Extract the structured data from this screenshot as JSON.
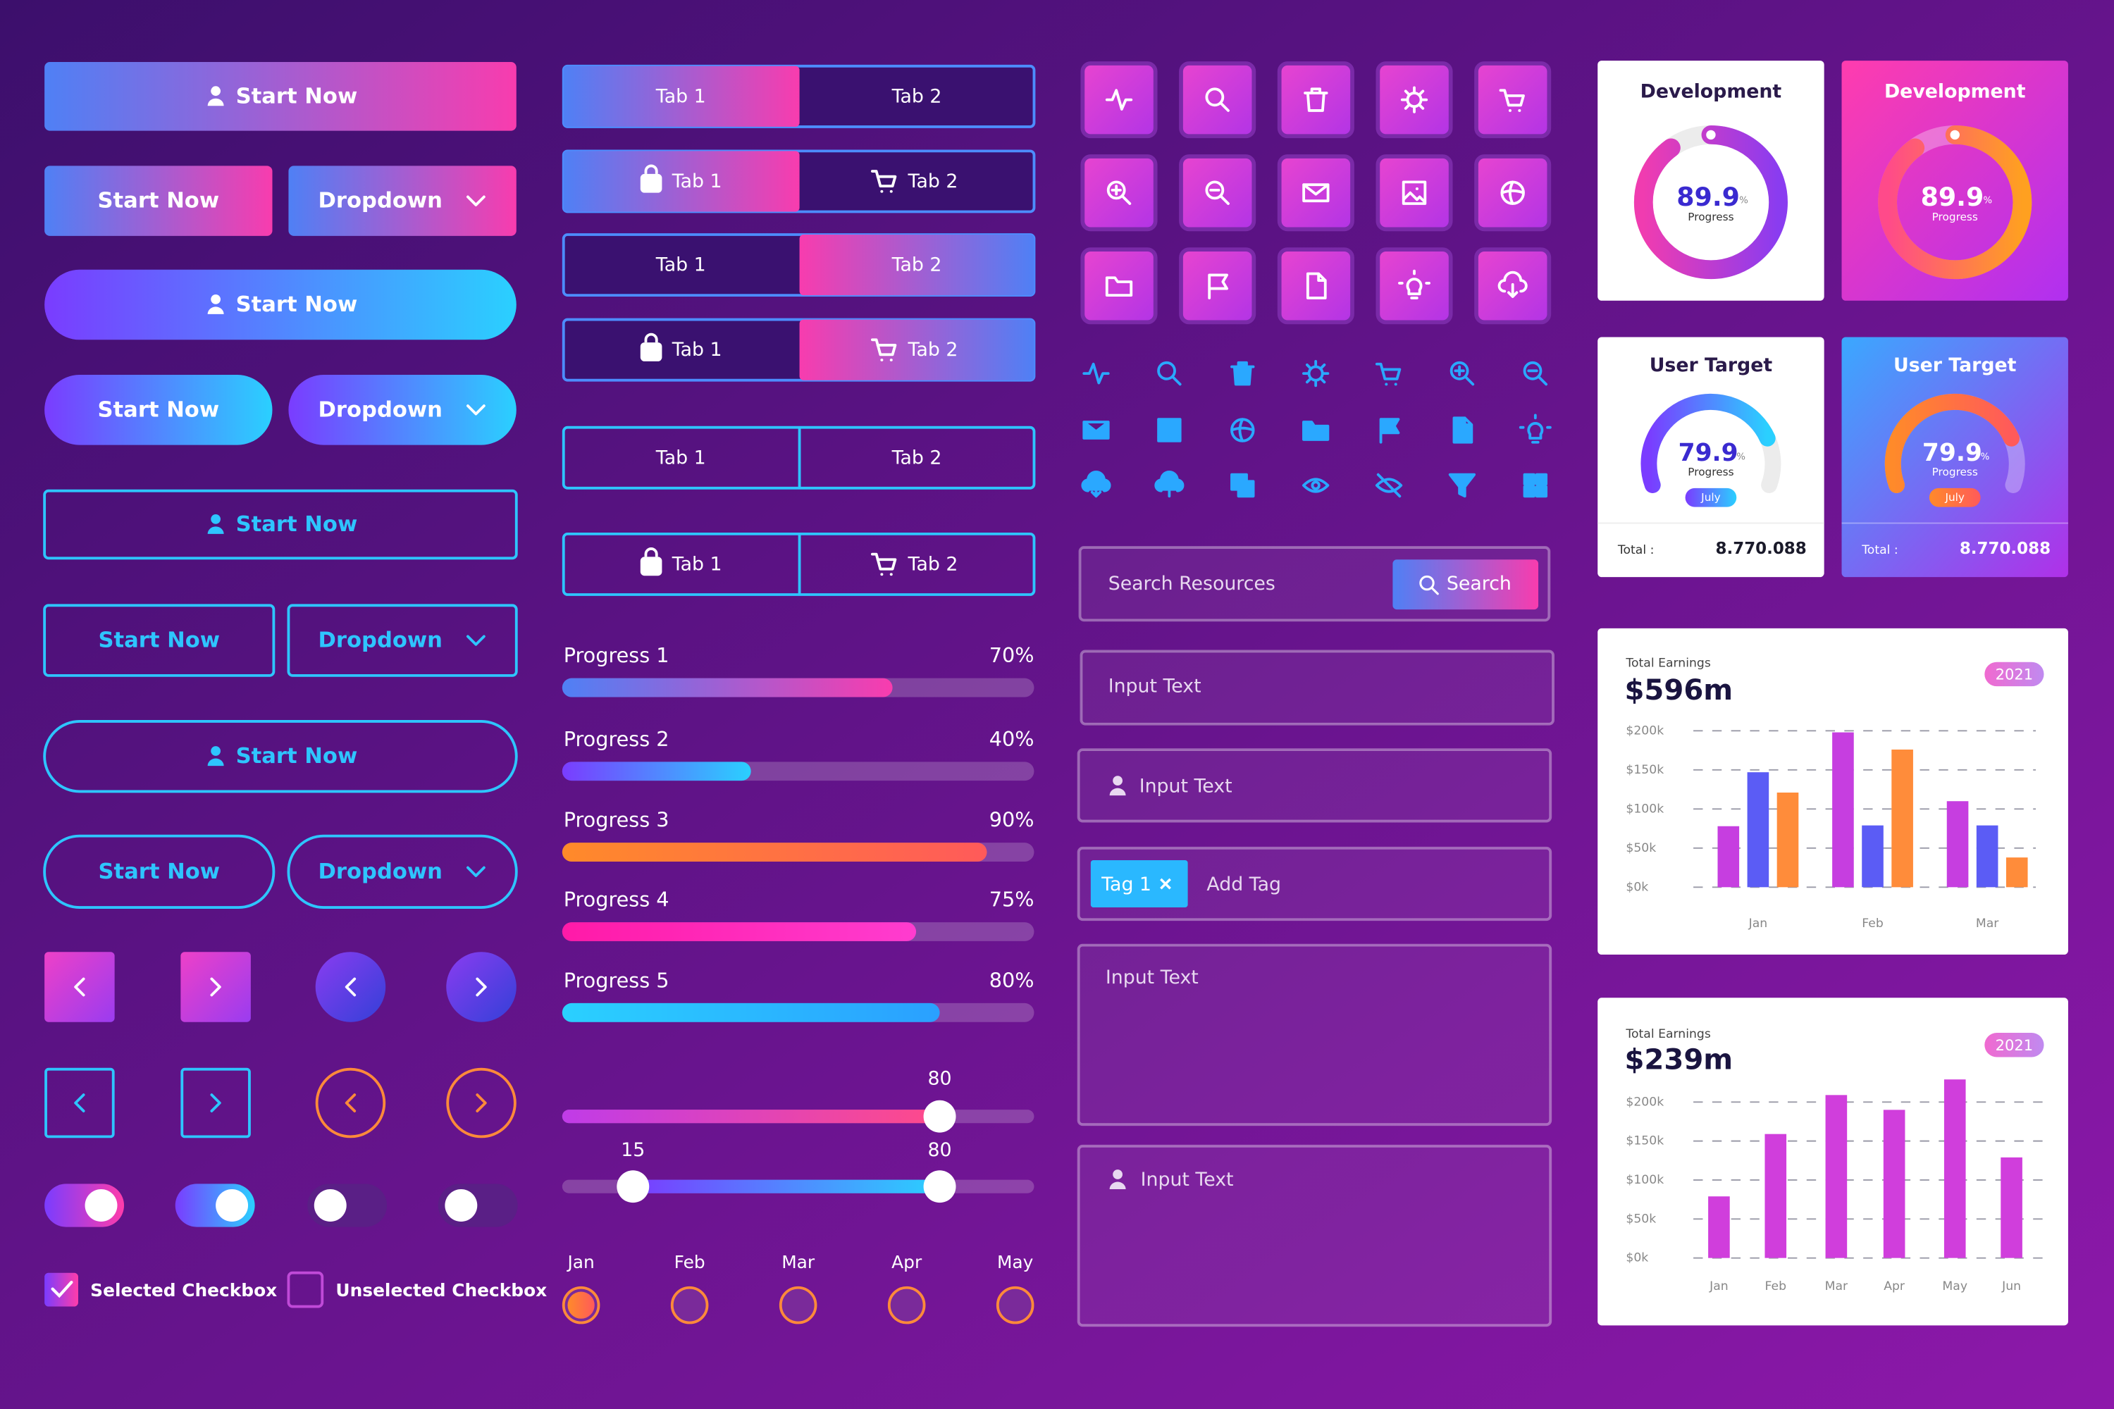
{
  "buttons": [
    "Start Now",
    "Start Now",
    "Dropdown",
    "Start Now",
    "Start Now",
    "Dropdown",
    "Start Now",
    "Start Now",
    "Dropdown",
    "Start Now",
    "Start Now",
    "Dropdown"
  ],
  "tabs": [
    [
      "Tab 1",
      "Tab 2"
    ],
    [
      "Tab 1",
      "Tab 2"
    ],
    [
      "Tab 1",
      "Tab 2"
    ],
    [
      "Tab 1",
      "Tab 2"
    ],
    [
      "Tab 1",
      "Tab 2"
    ],
    [
      "Tab 1",
      "Tab 2"
    ]
  ],
  "progress": [
    {
      "label": "Progress 1",
      "value": 70,
      "value_label": "70%"
    },
    {
      "label": "Progress 2",
      "value": 40,
      "value_label": "40%"
    },
    {
      "label": "Progress 3",
      "value": 90,
      "value_label": "90%"
    },
    {
      "label": "Progress 4",
      "value": 75,
      "value_label": "75%"
    },
    {
      "label": "Progress 5",
      "value": 80,
      "value_label": "80%"
    }
  ],
  "sliders": [
    {
      "values": [
        80
      ]
    },
    {
      "values": [
        15,
        80
      ]
    }
  ],
  "months": {
    "labels": [
      "Jan",
      "Feb",
      "Mar",
      "Apr",
      "May"
    ],
    "selected": 0
  },
  "checkboxes": [
    {
      "label": "Selected Checkbox",
      "checked": true
    },
    {
      "label": "Unselected Checkbox",
      "checked": false
    }
  ],
  "search": {
    "placeholder": "Search Resources",
    "button": "Search"
  },
  "inputs": {
    "text_1": "Input Text",
    "text_icon": "Input Text",
    "tag": "Tag 1",
    "tag_placeholder": "Add Tag",
    "textarea_1": "Input Text",
    "textarea_icon": "Input Text"
  },
  "stat_cards": [
    {
      "title": "Development",
      "value": 89.9,
      "unit": "%",
      "caption": "Progress"
    },
    {
      "title": "Development",
      "value": 89.9,
      "unit": "%",
      "caption": "Progress"
    }
  ],
  "target_cards": [
    {
      "title": "User Target",
      "value": 79.9,
      "unit": "%",
      "caption": "Progress",
      "badge": "July",
      "total_label": "Total :",
      "total": "8.770.088"
    },
    {
      "title": "User Target",
      "value": 79.9,
      "unit": "%",
      "caption": "Progress",
      "badge": "July",
      "total_label": "Total :",
      "total": "8.770.088"
    }
  ],
  "earnings": [
    {
      "label": "Total Earnings",
      "amount": "$596m",
      "year": "2021",
      "chart_data": {
        "type": "bar",
        "categories": [
          "Jan",
          "Feb",
          "Mar"
        ],
        "series": [
          {
            "color": "#c63ee0",
            "values": [
              78000,
              198000,
              110000
            ]
          },
          {
            "color": "#5b5cf5",
            "values": [
              147000,
              79000,
              79000
            ]
          },
          {
            "color": "#ff8c3a",
            "values": [
              121000,
              176000,
              38000
            ]
          }
        ],
        "ylim": [
          0,
          200000
        ],
        "yticks": [
          {
            "value": 0,
            "label": "$0k"
          },
          {
            "value": 50000,
            "label": "$50k"
          },
          {
            "value": 100000,
            "label": "$100k"
          },
          {
            "value": 150000,
            "label": "$150k"
          },
          {
            "value": 200000,
            "label": "$200k"
          }
        ],
        "grid": true
      }
    },
    {
      "label": "Total Earnings",
      "amount": "$239m",
      "year": "2021",
      "chart_data": {
        "type": "bar",
        "categories": [
          "Jan",
          "Feb",
          "Mar",
          "Apr",
          "May",
          "Jun"
        ],
        "series": [
          {
            "color": "#d03edc",
            "values": [
              79000,
              159000,
              209000,
              190000,
              229000,
              129000
            ]
          }
        ],
        "ylim": [
          0,
          230000
        ],
        "yticks": [
          {
            "value": 0,
            "label": "$0k"
          },
          {
            "value": 50000,
            "label": "$50k"
          },
          {
            "value": 100000,
            "label": "$100k"
          },
          {
            "value": 150000,
            "label": "$150k"
          },
          {
            "value": 200000,
            "label": "$200k"
          }
        ],
        "grid": true
      }
    }
  ]
}
